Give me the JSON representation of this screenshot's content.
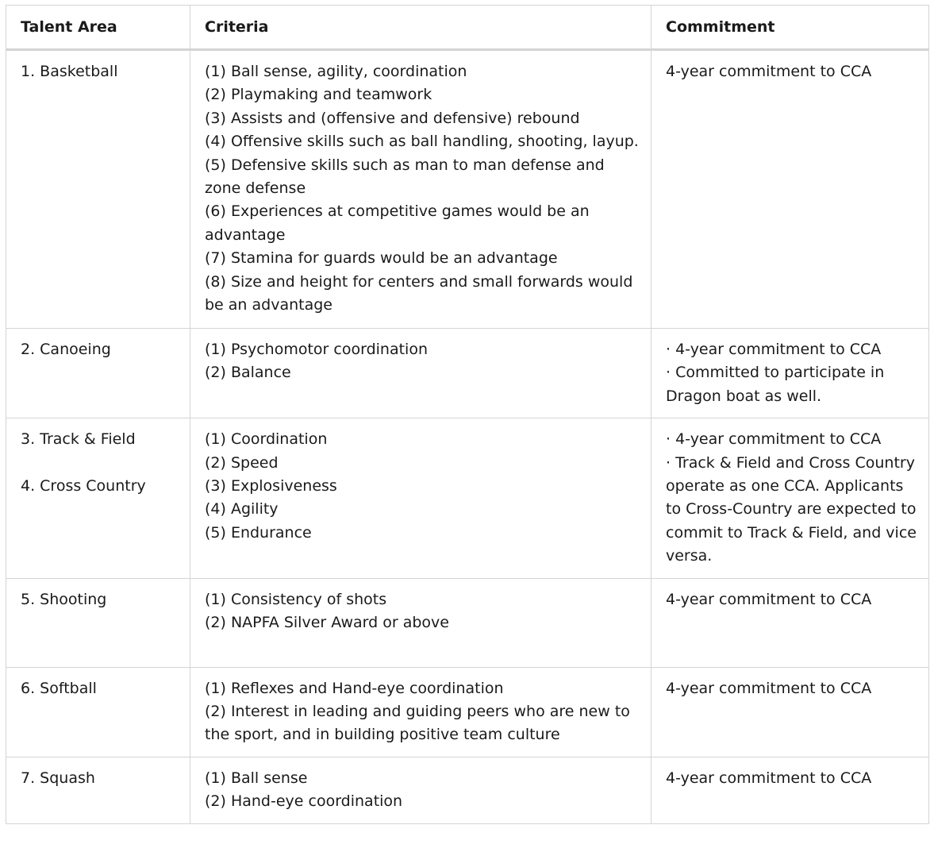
{
  "headers": {
    "talent_area": "Talent Area",
    "criteria": "Criteria",
    "commitment": "Commitment"
  },
  "rows": [
    {
      "area": [
        "1. Basketball"
      ],
      "criteria": [
        "(1) Ball sense, agility, coordination",
        "(2) Playmaking and teamwork",
        "(3) Assists and (offensive and defensive) rebound",
        "(4) Offensive skills such as ball handling, shooting, layup.",
        "(5) Defensive skills such as man to man defense and zone defense",
        "(6) Experiences at competitive games would be an advantage",
        "(7) Stamina for guards would be an advantage",
        "(8) Size and height for centers and small forwards would be an advantage"
      ],
      "commitment": [
        "4-year commitment to CCA"
      ]
    },
    {
      "area": [
        "2. Canoeing"
      ],
      "criteria": [
        "(1) Psychomotor coordination",
        "(2) Balance"
      ],
      "commitment": [
        "· 4-year commitment to CCA",
        "· Committed to participate in Dragon boat as well."
      ]
    },
    {
      "area": [
        "3. Track & Field",
        "4. Cross Country"
      ],
      "criteria": [
        "(1) Coordination",
        "(2) Speed",
        "(3) Explosiveness",
        "(4) Agility",
        "(5) Endurance"
      ],
      "commitment": [
        "· 4-year commitment to CCA",
        "· Track & Field and Cross Country operate as one CCA. Applicants to Cross-Country are expected to commit to Track & Field, and vice versa."
      ]
    },
    {
      "area": [
        "5. Shooting"
      ],
      "criteria": [
        "(1) Consistency of shots",
        "(2) NAPFA Silver Award or above"
      ],
      "commitment": [
        "4-year commitment to CCA"
      ]
    },
    {
      "area": [
        "6. Softball"
      ],
      "criteria": [
        "(1) Reflexes and Hand-eye coordination",
        "(2) Interest in leading and guiding peers who are new to the sport, and in building positive team culture"
      ],
      "commitment": [
        "4-year commitment to CCA"
      ]
    },
    {
      "area": [
        "7. Squash"
      ],
      "criteria": [
        "(1) Ball sense",
        "(2) Hand-eye coordination"
      ],
      "commitment": [
        "4-year commitment to CCA"
      ]
    }
  ]
}
